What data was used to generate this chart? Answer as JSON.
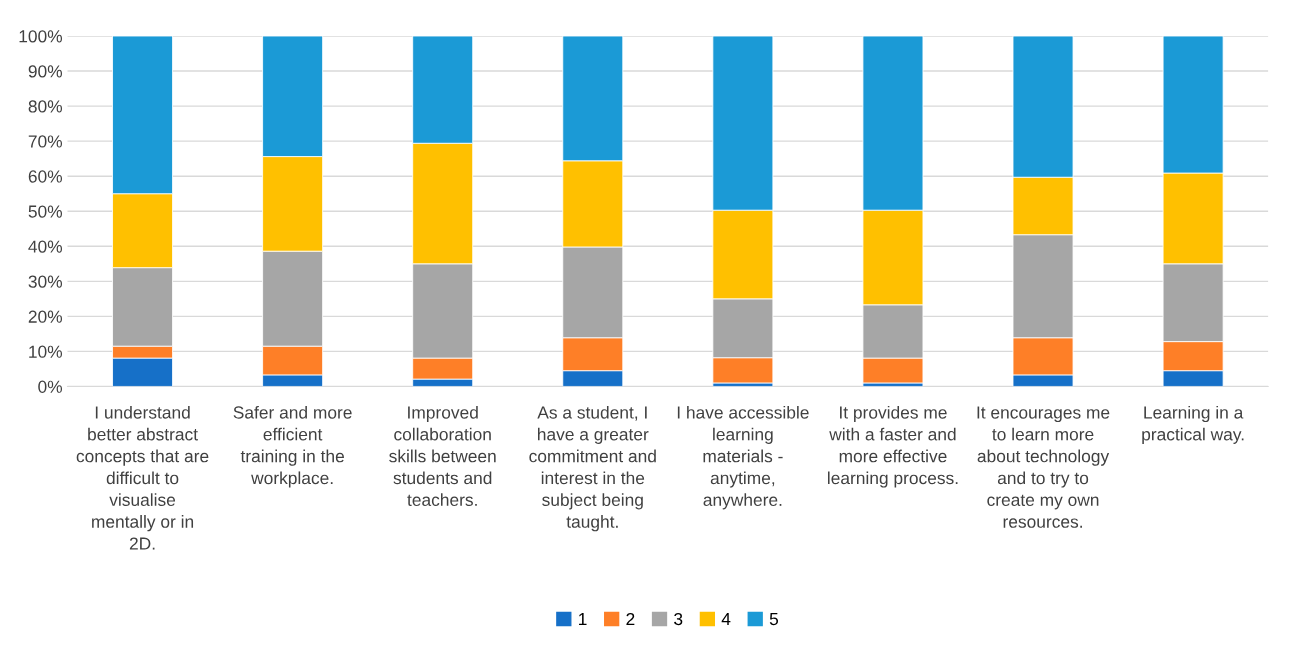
{
  "chart_data": {
    "type": "bar",
    "stacked": true,
    "categories": [
      "I understand better abstract concepts that are difficult to visualise mentally or in 2D.",
      "Safer and more efficient training in the workplace.",
      "Improved collaboration skills between students and teachers.",
      "As a student, I have a greater commitment and interest in the subject being taught.",
      "I have accessible learning materials - anytime, anywhere.",
      "It provides me with a faster and more effective learning process.",
      "It encourages me to learn more about technology and to try to create my own resources.",
      "Learning in a practical way."
    ],
    "series": [
      {
        "name": "1",
        "color": "#1670c8",
        "values": [
          8.1,
          3.3,
          2.1,
          4.5,
          1.0,
          1.0,
          3.3,
          4.5
        ]
      },
      {
        "name": "2",
        "color": "#fe7f27",
        "values": [
          3.4,
          8.2,
          6.0,
          9.4,
          7.2,
          7.1,
          10.6,
          8.3
        ]
      },
      {
        "name": "3",
        "color": "#a6a6a6",
        "values": [
          22.4,
          27.1,
          26.9,
          25.9,
          16.8,
          15.2,
          29.4,
          22.2
        ]
      },
      {
        "name": "4",
        "color": "#ffc000",
        "values": [
          21.1,
          27.0,
          34.4,
          24.6,
          25.3,
          27.0,
          16.4,
          25.9
        ]
      },
      {
        "name": "5",
        "color": "#1b9ad6",
        "values": [
          45.0,
          34.4,
          30.6,
          35.6,
          49.7,
          49.7,
          40.3,
          39.1
        ]
      }
    ],
    "ylim": [
      0,
      100
    ],
    "yticks": [
      {
        "value": 0,
        "label": "0%"
      },
      {
        "value": 10,
        "label": "10%"
      },
      {
        "value": 20,
        "label": "20%"
      },
      {
        "value": 30,
        "label": "30%"
      },
      {
        "value": 40,
        "label": "40%"
      },
      {
        "value": 50,
        "label": "50%"
      },
      {
        "value": 60,
        "label": "60%"
      },
      {
        "value": 70,
        "label": "70%"
      },
      {
        "value": 80,
        "label": "80%"
      },
      {
        "value": 90,
        "label": "90%"
      },
      {
        "value": 100,
        "label": "100%"
      }
    ],
    "grid": "y",
    "legend": "bottom"
  }
}
